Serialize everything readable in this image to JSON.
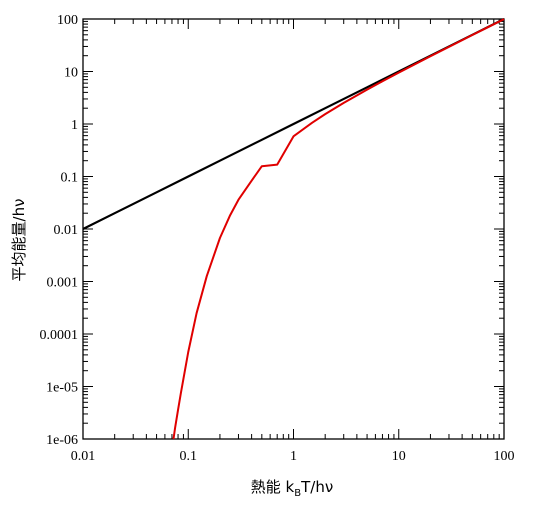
{
  "chart_data": {
    "type": "line",
    "xlabel": {
      "main": "熱能 k",
      "sub": "B",
      "tail": "T/hν"
    },
    "ylabel": "平均能量/hν",
    "xscale": "log",
    "yscale": "log",
    "xlim": [
      0.01,
      100
    ],
    "ylim": [
      1e-06,
      100
    ],
    "grid": false,
    "x_ticks": [
      {
        "value": 0.01,
        "label": "0.01"
      },
      {
        "value": 0.1,
        "label": "0.1"
      },
      {
        "value": 1,
        "label": "1"
      },
      {
        "value": 10,
        "label": "10"
      },
      {
        "value": 100,
        "label": "100"
      }
    ],
    "y_ticks": [
      {
        "value": 1e-06,
        "label": "1e-06"
      },
      {
        "value": 1e-05,
        "label": "1e-05"
      },
      {
        "value": 0.0001,
        "label": "0.0001"
      },
      {
        "value": 0.001,
        "label": "0.001"
      },
      {
        "value": 0.01,
        "label": "0.01"
      },
      {
        "value": 0.1,
        "label": "0.1"
      },
      {
        "value": 1,
        "label": "1"
      },
      {
        "value": 10,
        "label": "10"
      },
      {
        "value": 100,
        "label": "100"
      }
    ],
    "series": [
      {
        "color": "#000000",
        "x": [
          0.01,
          0.02,
          0.05,
          0.1,
          0.2,
          0.5,
          1,
          2,
          5,
          10,
          20,
          50,
          100
        ],
        "y": [
          0.01,
          0.02,
          0.05,
          0.1,
          0.2,
          0.5,
          1,
          2,
          5,
          10,
          20,
          50,
          100
        ]
      },
      {
        "color": "#e00000",
        "x": [
          0.0724,
          0.075,
          0.08,
          0.085,
          0.09,
          0.1,
          0.12,
          0.15,
          0.2,
          0.25,
          0.3,
          0.4,
          0.5,
          0.7,
          1,
          1.5,
          2,
          3,
          5,
          7,
          10,
          20,
          30,
          50,
          70,
          100
        ],
        "y": [
          1e-06,
          1.64e-06,
          3.6e-06,
          7.4e-06,
          1.4e-05,
          4.54e-05,
          0.000249,
          0.00127,
          0.00674,
          0.0183,
          0.0361,
          0.0833,
          0.157,
          0.168,
          0.582,
          1.055,
          1.541,
          2.528,
          4.517,
          6.514,
          9.508,
          19.504,
          29.503,
          49.502,
          69.501,
          99.501
        ]
      }
    ]
  }
}
